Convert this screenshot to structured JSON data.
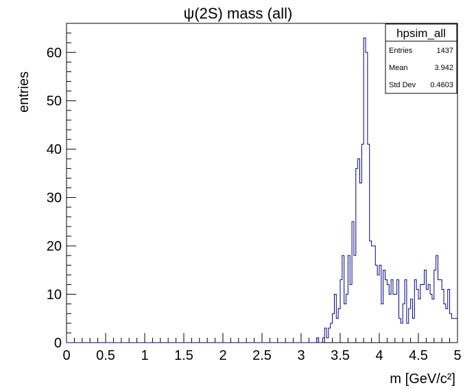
{
  "chart_data": {
    "type": "histogram",
    "title": "ψ(2S) mass (all)",
    "xlabel": "m [GeV/c²]",
    "ylabel": "entries",
    "xlim": [
      0,
      5
    ],
    "ylim": [
      0,
      66
    ],
    "bin_width": 0.025,
    "x_ticks": [
      "0",
      "0.5",
      "1",
      "1.5",
      "2",
      "2.5",
      "3",
      "3.5",
      "4",
      "4.5",
      "5"
    ],
    "y_ticks": [
      "0",
      "10",
      "20",
      "30",
      "40",
      "50",
      "60"
    ],
    "series_color": "#000080",
    "values": [
      0,
      0,
      0,
      0,
      0,
      0,
      0,
      0,
      0,
      0,
      0,
      0,
      0,
      0,
      0,
      0,
      0,
      0,
      0,
      0,
      0,
      0,
      0,
      0,
      0,
      0,
      0,
      0,
      0,
      0,
      0,
      0,
      0,
      0,
      0,
      0,
      0,
      0,
      0,
      0,
      0,
      0,
      0,
      0,
      0,
      0,
      0,
      0,
      0,
      0,
      0,
      0,
      0,
      0,
      0,
      0,
      0,
      0,
      0,
      0,
      0,
      0,
      0,
      0,
      0,
      0,
      0,
      0,
      0,
      0,
      0,
      0,
      0,
      0,
      0,
      0,
      0,
      0,
      0,
      0,
      0,
      0,
      0,
      0,
      0,
      0,
      0,
      0,
      0,
      0,
      0,
      0,
      0,
      0,
      0,
      0,
      0,
      0,
      0,
      0,
      0,
      0,
      0,
      0,
      0,
      0,
      0,
      0,
      0,
      0,
      0,
      0,
      0,
      0,
      0,
      0,
      0,
      0,
      0,
      0,
      0,
      0,
      0,
      0,
      0,
      0,
      0,
      0,
      1,
      0,
      0,
      1,
      3,
      1,
      3,
      4,
      6,
      10,
      5,
      7,
      13,
      18,
      8,
      10,
      18,
      12,
      25,
      18,
      36,
      38,
      33,
      41,
      63,
      60,
      41,
      21,
      20,
      20,
      16,
      14,
      16,
      8,
      15,
      13,
      12,
      10,
      13,
      10,
      10,
      13,
      5,
      4,
      8,
      13,
      4,
      7,
      9,
      5,
      13,
      11,
      9,
      12,
      12,
      15,
      11,
      12,
      10,
      9,
      15,
      18,
      13,
      13,
      11,
      8,
      7,
      11,
      6,
      5,
      5,
      5
    ],
    "stats": {
      "name": "hpsim_all",
      "rows": [
        {
          "label": "Entries",
          "value": "1437"
        },
        {
          "label": "Mean",
          "value": "3.942"
        },
        {
          "label": "Std Dev",
          "value": "0.4603"
        }
      ]
    }
  }
}
